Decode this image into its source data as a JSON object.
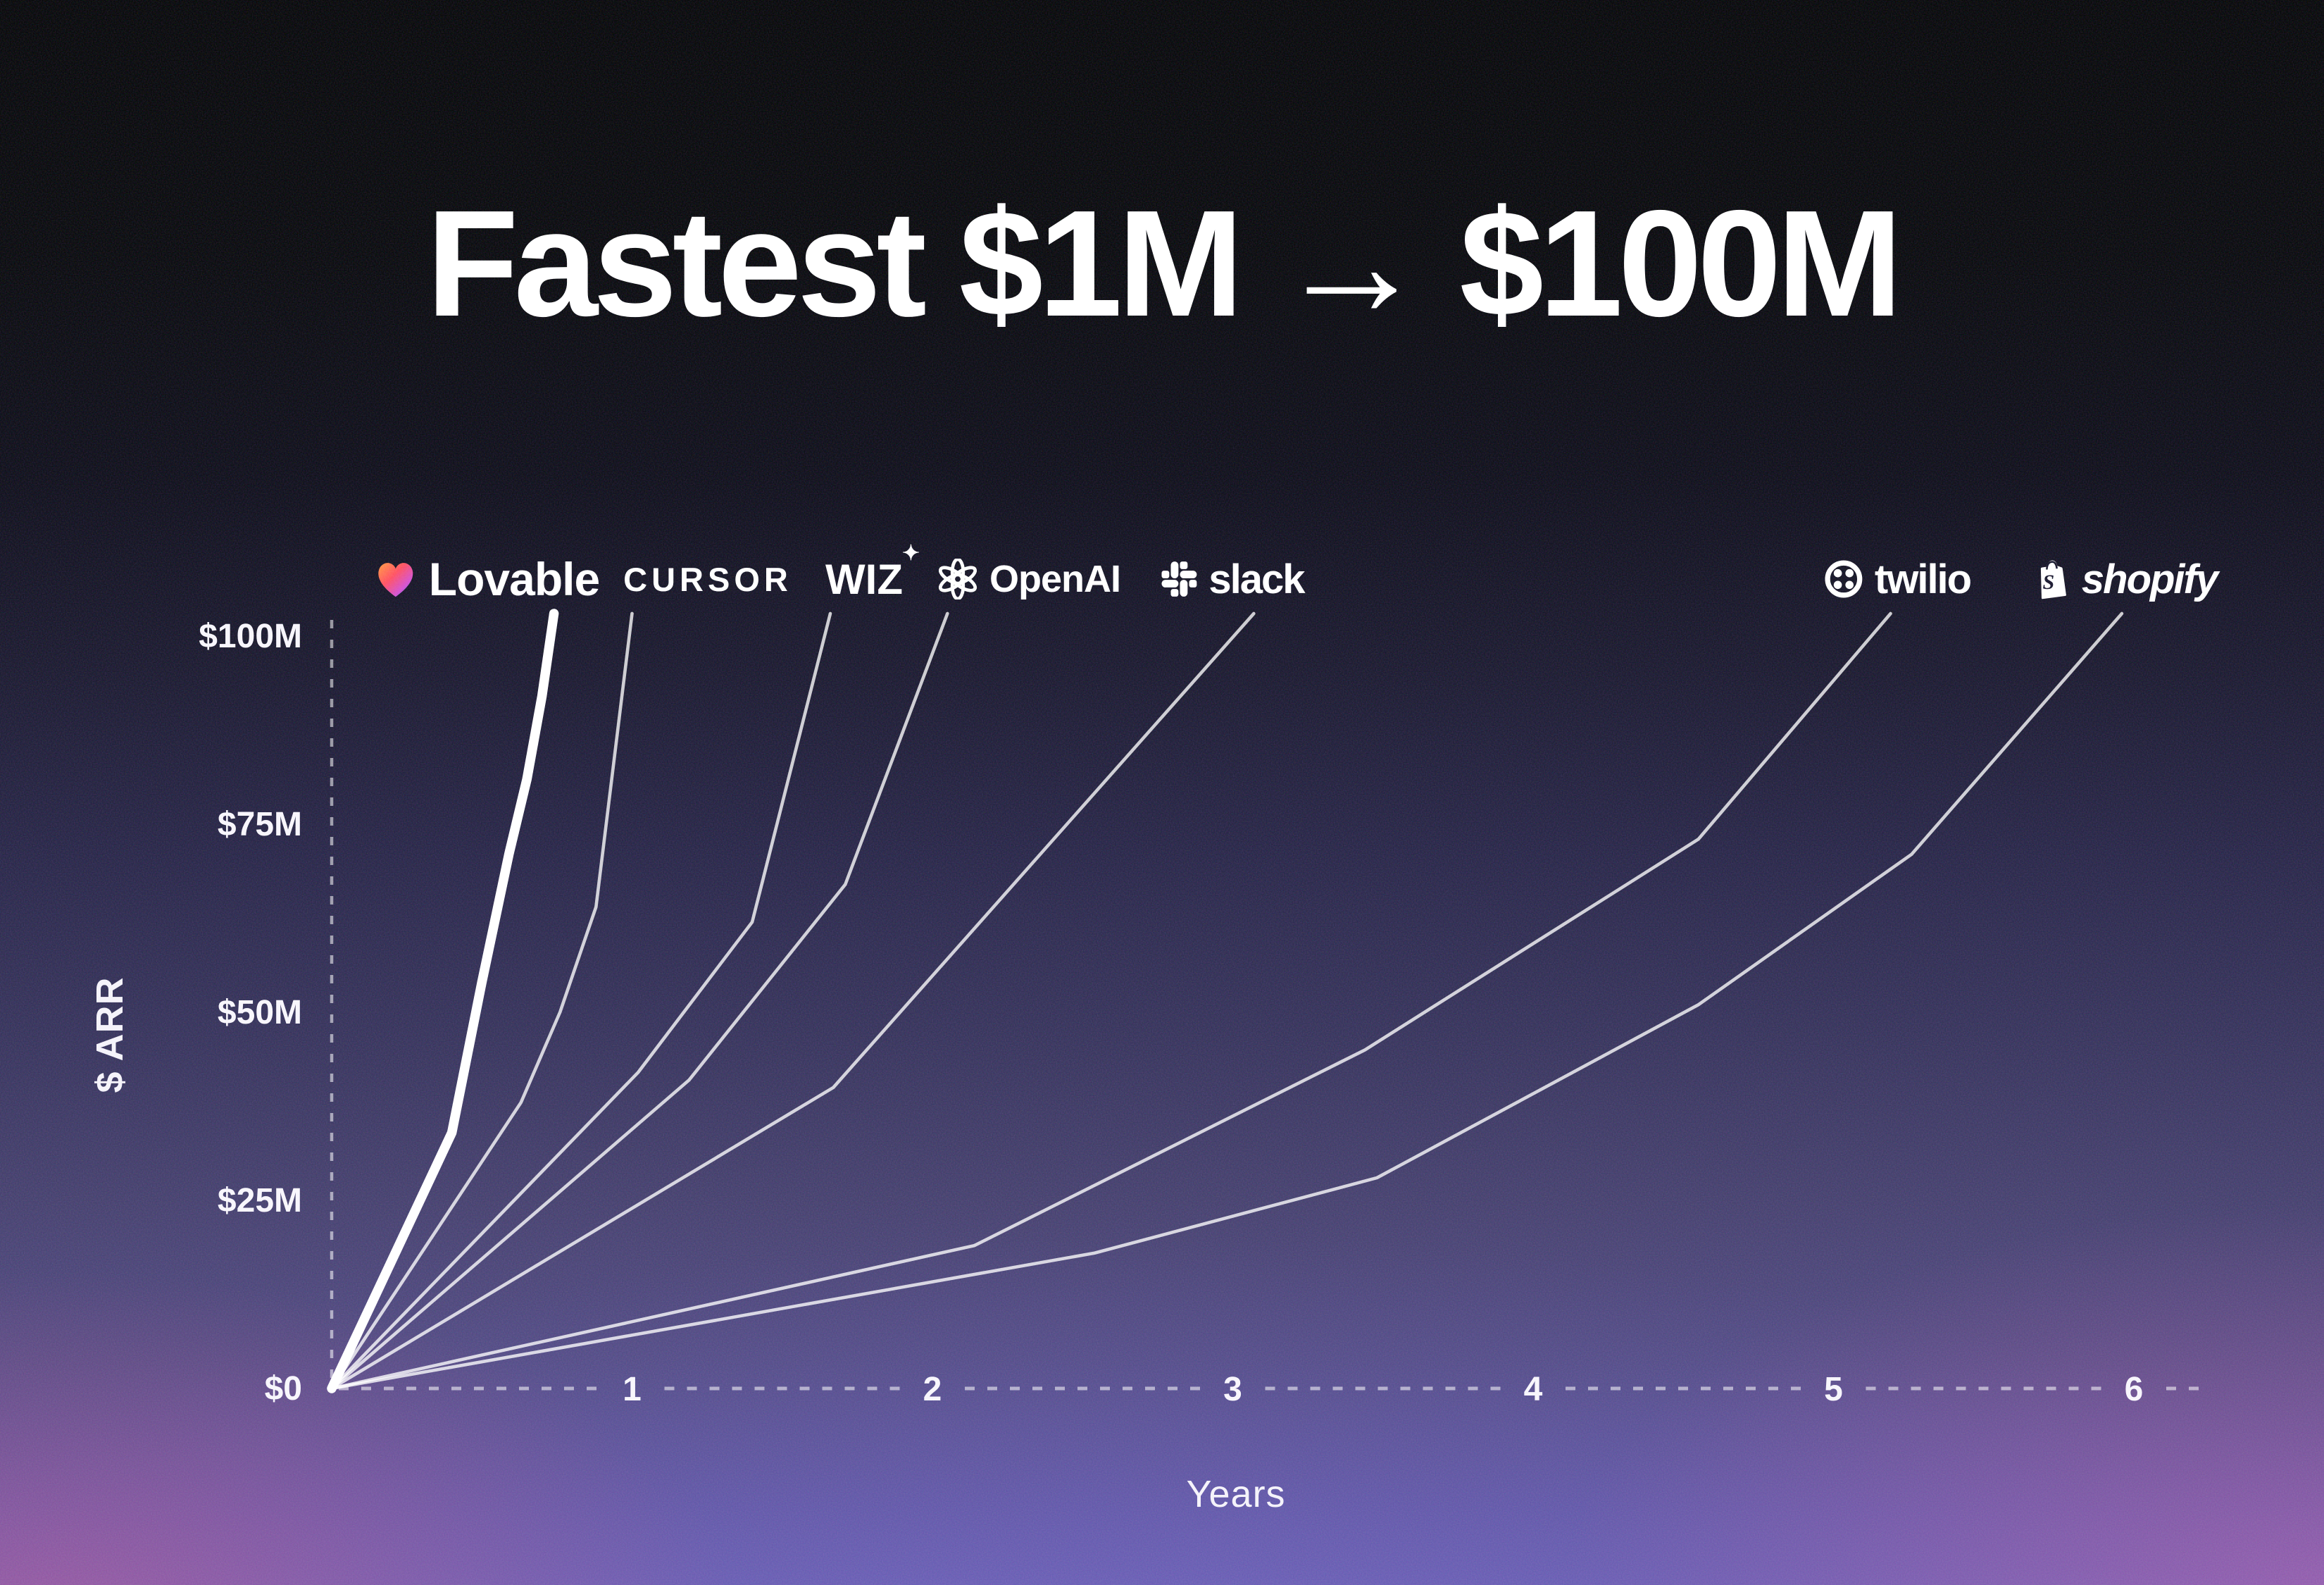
{
  "title": {
    "text": "Fastest $1M → $100M"
  },
  "axes": {
    "x_title": "Years",
    "y_title": "$ ARR"
  },
  "logos": [
    {
      "id": "lovable",
      "label": "Lovable"
    },
    {
      "id": "cursor",
      "label": "CURSOR"
    },
    {
      "id": "wiz",
      "label": "WIZ",
      "star": "✦"
    },
    {
      "id": "openai",
      "label": "OpenAI"
    },
    {
      "id": "slack",
      "label": "slack"
    },
    {
      "id": "twilio",
      "label": "twilio"
    },
    {
      "id": "shopify",
      "label": "shopify"
    }
  ],
  "colors": {
    "line": "#ffffff",
    "thin_line": "rgba(255,255,255,0.78)",
    "axis_dash": "rgba(255,255,255,0.55)",
    "tick_text": "#f7f5fc",
    "heart_gradient": [
      "#ff9a3d",
      "#ff4d5e",
      "#d44dcf",
      "#4d66ff"
    ]
  },
  "chart_data": {
    "type": "line",
    "title": "Fastest $1M → $100M",
    "xlabel": "Years",
    "ylabel": "$ ARR",
    "xlim": [
      0,
      6.4
    ],
    "ylim": [
      0,
      103
    ],
    "grid": false,
    "x_ticks": [
      1,
      2,
      3,
      4,
      5,
      6
    ],
    "y_ticks": [
      {
        "value": 0,
        "label": "$0"
      },
      {
        "value": 25,
        "label": "$25M"
      },
      {
        "value": 50,
        "label": "$50M"
      },
      {
        "value": 75,
        "label": "$75M"
      },
      {
        "value": 100,
        "label": "$100M"
      }
    ],
    "units": {
      "x": "years",
      "y": "$M ARR"
    },
    "legend_position": "logos-above-line-tops",
    "series": [
      {
        "name": "Lovable",
        "emphasis": true,
        "years_to_100m": 0.74,
        "points": [
          [
            0,
            0
          ],
          [
            0.4,
            34
          ],
          [
            0.5,
            54
          ],
          [
            0.59,
            71
          ],
          [
            0.65,
            81
          ],
          [
            0.7,
            92
          ],
          [
            0.74,
            103
          ]
        ]
      },
      {
        "name": "Cursor",
        "emphasis": false,
        "years_to_100m": 1.0,
        "points": [
          [
            0,
            0
          ],
          [
            0.63,
            38
          ],
          [
            0.76,
            50
          ],
          [
            0.88,
            64
          ],
          [
            1.0,
            103
          ]
        ]
      },
      {
        "name": "Wiz",
        "emphasis": false,
        "years_to_100m": 1.66,
        "points": [
          [
            0,
            0
          ],
          [
            1.02,
            42
          ],
          [
            1.4,
            62
          ],
          [
            1.66,
            103
          ]
        ]
      },
      {
        "name": "OpenAI",
        "emphasis": false,
        "years_to_100m": 2.05,
        "points": [
          [
            0,
            0
          ],
          [
            1.19,
            41
          ],
          [
            1.71,
            67
          ],
          [
            2.05,
            103
          ]
        ]
      },
      {
        "name": "Slack",
        "emphasis": false,
        "years_to_100m": 3.07,
        "points": [
          [
            0,
            0
          ],
          [
            1.67,
            40
          ],
          [
            3.07,
            103
          ]
        ]
      },
      {
        "name": "Twilio",
        "emphasis": false,
        "years_to_100m": 5.19,
        "points": [
          [
            0,
            0
          ],
          [
            2.14,
            19
          ],
          [
            3.44,
            45
          ],
          [
            4.55,
            73
          ],
          [
            5.19,
            103
          ]
        ]
      },
      {
        "name": "Shopify",
        "emphasis": false,
        "years_to_100m": 5.96,
        "points": [
          [
            0,
            0
          ],
          [
            2.54,
            18
          ],
          [
            3.48,
            28
          ],
          [
            4.55,
            51
          ],
          [
            5.26,
            71
          ],
          [
            5.96,
            103
          ]
        ]
      }
    ]
  }
}
